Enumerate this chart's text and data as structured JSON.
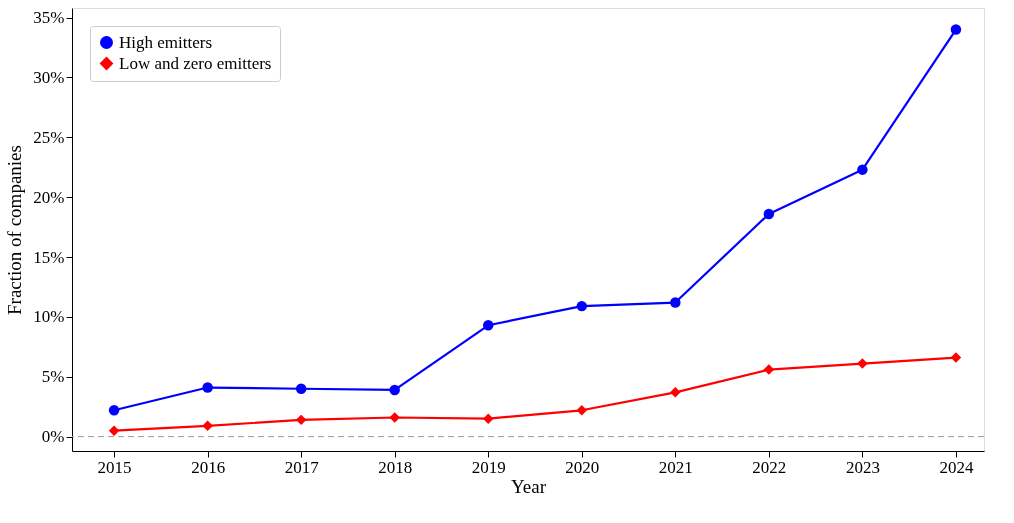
{
  "chart_data": {
    "type": "line",
    "xlabel": "Year",
    "ylabel": "Fraction of companies",
    "x": [
      2015,
      2016,
      2017,
      2018,
      2019,
      2020,
      2021,
      2022,
      2023,
      2024
    ],
    "series": [
      {
        "name": "High emitters",
        "color": "#0000ff",
        "marker": "circle",
        "values": [
          2.2,
          4.1,
          4.0,
          3.9,
          9.3,
          10.9,
          11.2,
          18.6,
          22.3,
          34.0
        ]
      },
      {
        "name": "Low and zero emitters",
        "color": "#ff0000",
        "marker": "diamond",
        "values": [
          0.5,
          0.9,
          1.4,
          1.6,
          1.5,
          2.2,
          3.7,
          5.6,
          6.1,
          6.6
        ]
      }
    ],
    "xlim": [
      2014.55,
      2024.3
    ],
    "ylim": [
      -1.2,
      35.8
    ],
    "xticks": [
      2015,
      2016,
      2017,
      2018,
      2019,
      2020,
      2021,
      2022,
      2023,
      2024
    ],
    "yticks": [
      {
        "value": 0,
        "label": "0%"
      },
      {
        "value": 5,
        "label": "5%"
      },
      {
        "value": 10,
        "label": "10%"
      },
      {
        "value": 15,
        "label": "15%"
      },
      {
        "value": 20,
        "label": "20%"
      },
      {
        "value": 25,
        "label": "25%"
      },
      {
        "value": 30,
        "label": "30%"
      },
      {
        "value": 35,
        "label": "35%"
      }
    ],
    "ref_lines": [
      {
        "axis": "y",
        "value": 0,
        "color": "#999999",
        "line_style": "dashed"
      }
    ],
    "legend": "top left",
    "grid": false,
    "line_style": "solid"
  }
}
